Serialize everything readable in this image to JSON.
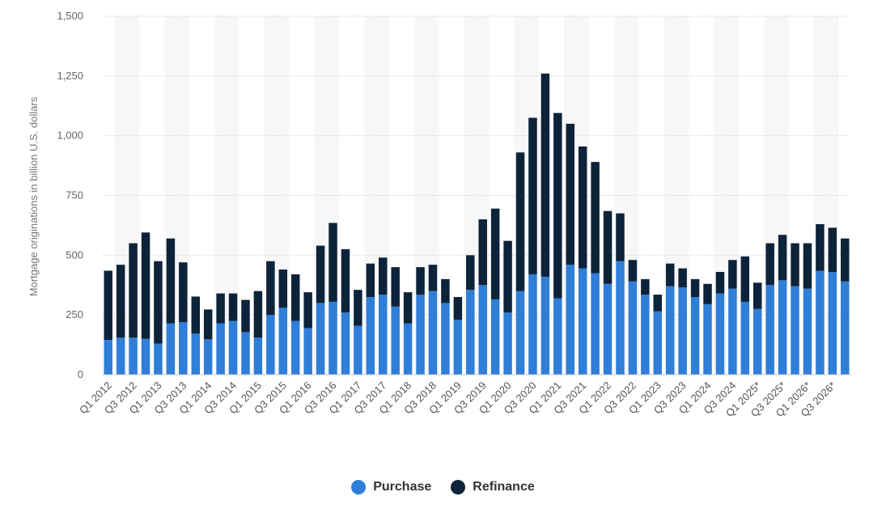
{
  "chart_data": {
    "type": "bar",
    "stacked": true,
    "title": "",
    "xlabel": "",
    "ylabel": "Mortgage originations in billion U.S. dollars",
    "ylim": [
      0,
      1500
    ],
    "yticks": [
      0,
      250,
      500,
      750,
      1000,
      1250,
      1500
    ],
    "ytick_labels": [
      "0",
      "250",
      "500",
      "750",
      "1,000",
      "1,250",
      "1,500"
    ],
    "grid": true,
    "legend_position": "bottom-center",
    "categories": [
      "Q1 2012",
      "Q2 2012",
      "Q3 2012",
      "Q4 2012",
      "Q1 2013",
      "Q2 2013",
      "Q3 2013",
      "Q4 2013",
      "Q1 2014",
      "Q2 2014",
      "Q3 2014",
      "Q4 2014",
      "Q1 2015",
      "Q2 2015",
      "Q3 2015",
      "Q4 2015",
      "Q1 2016",
      "Q2 2016",
      "Q3 2016",
      "Q4 2016",
      "Q1 2017",
      "Q2 2017",
      "Q3 2017",
      "Q4 2017",
      "Q1 2018",
      "Q2 2018",
      "Q3 2018",
      "Q4 2018",
      "Q1 2019",
      "Q2 2019",
      "Q3 2019",
      "Q4 2019",
      "Q1 2020",
      "Q2 2020",
      "Q3 2020",
      "Q4 2020",
      "Q1 2021",
      "Q2 2021",
      "Q3 2021",
      "Q4 2021",
      "Q1 2022",
      "Q2 2022",
      "Q3 2022",
      "Q4 2022",
      "Q1 2023",
      "Q2 2023",
      "Q3 2023",
      "Q4 2023",
      "Q1 2024",
      "Q2 2024",
      "Q3 2024",
      "Q4 2024",
      "Q1 2025*",
      "Q2 2025*",
      "Q3 2025*",
      "Q4 2025*",
      "Q1 2026*",
      "Q2 2026*",
      "Q3 2026*",
      "Q4 2026*"
    ],
    "x_tick_labels": [
      "Q1 2012",
      "Q3 2012",
      "Q1 2013",
      "Q3 2013",
      "Q1 2014",
      "Q3 2014",
      "Q1 2015",
      "Q3 2015",
      "Q1 2016",
      "Q3 2016",
      "Q1 2017",
      "Q3 2017",
      "Q1 2018",
      "Q3 2018",
      "Q1 2019",
      "Q3 2019",
      "Q1 2020",
      "Q3 2020",
      "Q1 2021",
      "Q3 2021",
      "Q1 2022",
      "Q3 2022",
      "Q1 2023",
      "Q3 2023",
      "Q1 2024",
      "Q3 2024",
      "Q1 2025*",
      "Q3 2025*",
      "Q1 2026*",
      "Q3 2026*"
    ],
    "series": [
      {
        "name": "Purchase",
        "color": "#2f7ed8",
        "values": [
          145,
          155,
          155,
          150,
          130,
          215,
          220,
          172,
          148,
          215,
          225,
          178,
          155,
          250,
          280,
          225,
          195,
          300,
          305,
          260,
          205,
          325,
          335,
          285,
          215,
          335,
          350,
          300,
          230,
          355,
          375,
          315,
          260,
          350,
          420,
          410,
          320,
          460,
          445,
          425,
          380,
          475,
          390,
          335,
          265,
          370,
          365,
          325,
          295,
          340,
          360,
          305,
          275,
          375,
          395,
          370,
          360,
          435,
          430,
          390
        ]
      },
      {
        "name": "Refinance",
        "color": "#0d233a",
        "values": [
          290,
          305,
          395,
          445,
          345,
          355,
          250,
          155,
          125,
          125,
          115,
          135,
          195,
          225,
          160,
          195,
          150,
          240,
          330,
          265,
          150,
          140,
          155,
          165,
          130,
          115,
          110,
          100,
          95,
          145,
          275,
          380,
          300,
          580,
          655,
          850,
          775,
          590,
          510,
          465,
          305,
          200,
          90,
          65,
          70,
          95,
          80,
          75,
          85,
          90,
          120,
          190,
          110,
          175,
          190,
          180,
          190,
          195,
          185,
          180
        ]
      }
    ]
  }
}
